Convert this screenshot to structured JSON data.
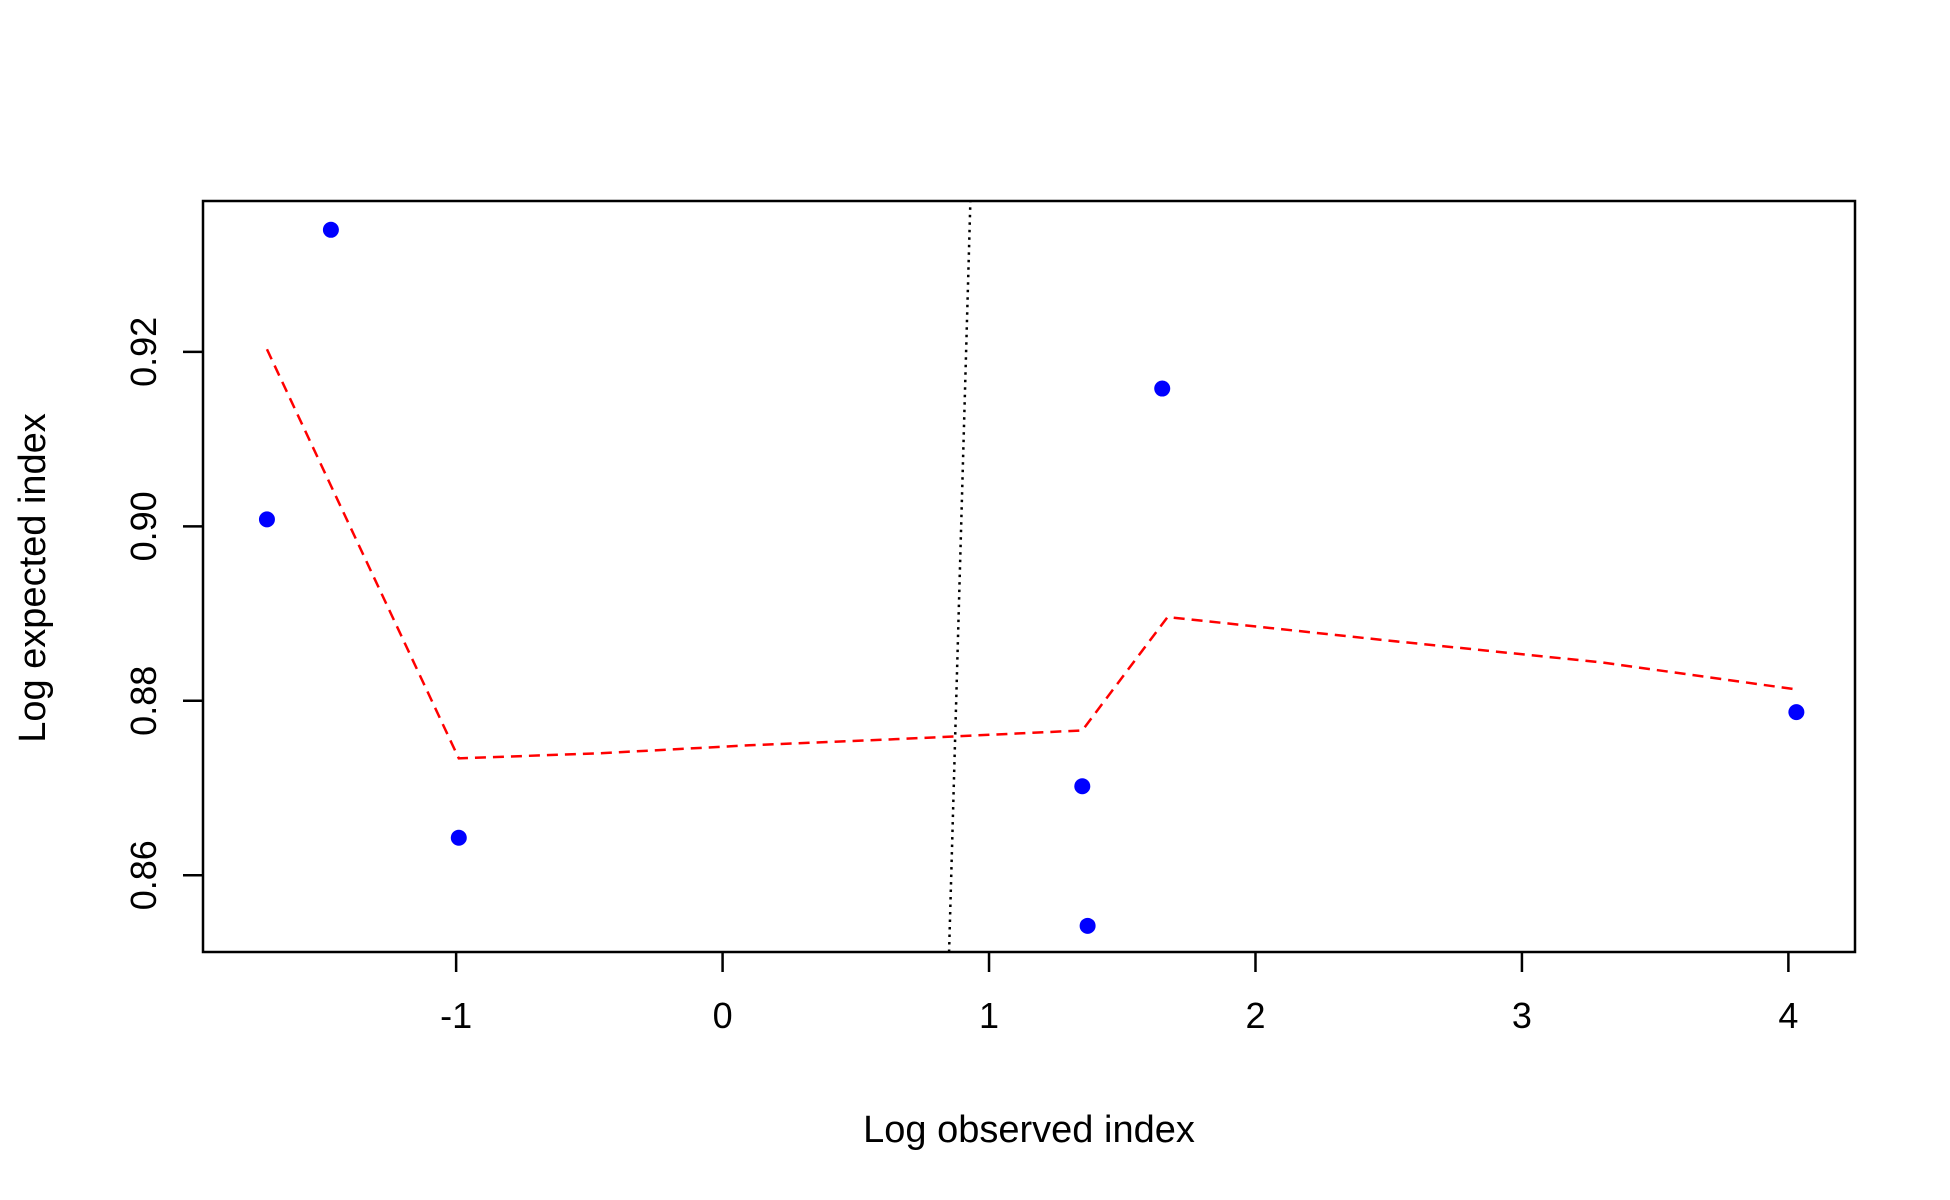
{
  "chart_data": {
    "type": "scatter",
    "title": "",
    "xlabel": "Log observed index",
    "ylabel": "Log expected index",
    "xlim": [
      -1.95,
      4.25
    ],
    "ylim": [
      0.8512,
      0.9373
    ],
    "x_ticks": [
      -1,
      0,
      1,
      2,
      3,
      4
    ],
    "x_tick_labels": [
      "-1",
      "0",
      "1",
      "2",
      "3",
      "4"
    ],
    "y_ticks": [
      0.86,
      0.88,
      0.9,
      0.92
    ],
    "y_tick_labels": [
      "0.86",
      "0.88",
      "0.90",
      "0.92"
    ],
    "grid": false,
    "points": {
      "color": "#0000ff",
      "x": [
        -1.71,
        -1.47,
        -0.99,
        1.35,
        1.37,
        1.65,
        4.03
      ],
      "y": [
        0.9008,
        0.934,
        0.8643,
        0.8702,
        0.8542,
        0.9158,
        0.8787
      ]
    },
    "smooth_line": {
      "color": "#ff0000",
      "style": "dashed",
      "x": [
        -1.71,
        -0.99,
        -0.45,
        0.1,
        0.65,
        1.35,
        1.67,
        2.5,
        3.3,
        4.03
      ],
      "y": [
        0.9203,
        0.8734,
        0.874,
        0.8749,
        0.8756,
        0.8766,
        0.8896,
        0.8869,
        0.8844,
        0.8813
      ]
    },
    "reference_line": {
      "color": "#000000",
      "style": "dotted",
      "x": [
        0.85,
        0.93
      ],
      "y": [
        0.8512,
        0.9373
      ]
    }
  }
}
